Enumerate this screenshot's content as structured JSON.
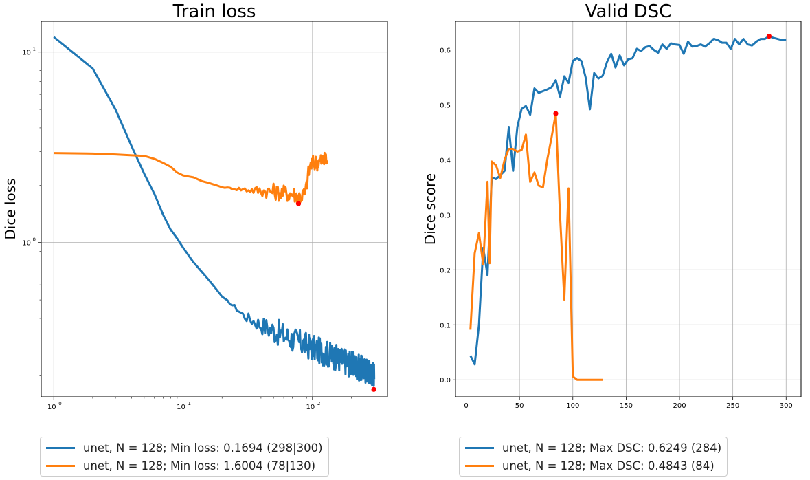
{
  "colors": {
    "series1": "#1f77b4",
    "series2": "#ff7f0e",
    "marker": "#ff0000",
    "grid": "#b0b0b0"
  },
  "chart_data": [
    {
      "type": "line",
      "title": "Train loss",
      "ylabel": "Dice loss",
      "xlabel": "",
      "xscale": "log",
      "yscale": "log",
      "xlim": [
        0.8,
        380
      ],
      "ylim": [
        0.155,
        14.5
      ],
      "xticks": [
        {
          "v": 1,
          "label": "10",
          "exp": "0"
        },
        {
          "v": 10,
          "label": "10",
          "exp": "1"
        },
        {
          "v": 100,
          "label": "10",
          "exp": "2"
        }
      ],
      "yticks": [
        {
          "v": 1,
          "label": "10",
          "exp": "0"
        },
        {
          "v": 10,
          "label": "10",
          "exp": "1"
        }
      ],
      "grid": true,
      "legend_position": "below",
      "series": [
        {
          "name": "unet, N = 128; Min loss: 0.1694 (298|300)",
          "x_end": 300,
          "anchors": [
            [
              1,
              12.0
            ],
            [
              2,
              8.2
            ],
            [
              3,
              5.0
            ],
            [
              4,
              3.2
            ],
            [
              5,
              2.3
            ],
            [
              6,
              1.8
            ],
            [
              7,
              1.4
            ],
            [
              8,
              1.17
            ],
            [
              9,
              1.05
            ],
            [
              10,
              0.94
            ],
            [
              12,
              0.79
            ],
            [
              14,
              0.7
            ],
            [
              16,
              0.63
            ],
            [
              18,
              0.57
            ],
            [
              20,
              0.52
            ],
            [
              25,
              0.46
            ],
            [
              30,
              0.41
            ],
            [
              40,
              0.37
            ],
            [
              50,
              0.345
            ],
            [
              70,
              0.31
            ],
            [
              100,
              0.28
            ],
            [
              150,
              0.25
            ],
            [
              200,
              0.23
            ],
            [
              250,
              0.215
            ],
            [
              300,
              0.205
            ]
          ],
          "noise": 0.07,
          "min_point": [
            298,
            0.1694
          ]
        },
        {
          "name": "unet, N = 128; Min loss: 1.6004 (78|130)",
          "x_end": 130,
          "anchors": [
            [
              1,
              2.95
            ],
            [
              2,
              2.93
            ],
            [
              3,
              2.9
            ],
            [
              4,
              2.87
            ],
            [
              5,
              2.85
            ],
            [
              6,
              2.75
            ],
            [
              7,
              2.62
            ],
            [
              8,
              2.5
            ],
            [
              9,
              2.33
            ],
            [
              10,
              2.25
            ],
            [
              12,
              2.2
            ],
            [
              14,
              2.1
            ],
            [
              16,
              2.05
            ],
            [
              18,
              2.0
            ],
            [
              20,
              1.95
            ],
            [
              25,
              1.92
            ],
            [
              30,
              1.9
            ],
            [
              40,
              1.87
            ],
            [
              50,
              1.85
            ],
            [
              60,
              1.82
            ],
            [
              70,
              1.8
            ],
            [
              80,
              1.75
            ],
            [
              88,
              1.8
            ],
            [
              92,
              2.2
            ],
            [
              96,
              2.55
            ],
            [
              100,
              2.6
            ],
            [
              110,
              2.65
            ],
            [
              120,
              2.7
            ],
            [
              130,
              2.7
            ]
          ],
          "noise": 0.045,
          "min_point": [
            78,
            1.6004
          ]
        }
      ]
    },
    {
      "type": "line",
      "title": "Valid DSC",
      "ylabel": "Dice score",
      "xlabel": "",
      "xlim": [
        -10,
        314
      ],
      "ylim": [
        -0.031,
        0.652
      ],
      "xticks": [
        0,
        50,
        100,
        150,
        200,
        250,
        300
      ],
      "yticks": [
        0.0,
        0.1,
        0.2,
        0.3,
        0.4,
        0.5,
        0.6
      ],
      "grid": true,
      "legend_position": "below",
      "series": [
        {
          "name": "unet, N = 128; Max DSC: 0.6249 (284)",
          "x": [
            4,
            8,
            12,
            16,
            20,
            24,
            28,
            32,
            36,
            40,
            44,
            48,
            52,
            56,
            60,
            64,
            68,
            72,
            76,
            80,
            84,
            88,
            92,
            96,
            100,
            104,
            108,
            112,
            116,
            120,
            124,
            128,
            132,
            136,
            140,
            144,
            148,
            152,
            156,
            160,
            164,
            168,
            172,
            176,
            180,
            184,
            188,
            192,
            196,
            200,
            204,
            208,
            212,
            216,
            220,
            224,
            228,
            232,
            236,
            240,
            244,
            248,
            252,
            256,
            260,
            264,
            268,
            272,
            276,
            280,
            284,
            288,
            292,
            296,
            300
          ],
          "y": [
            0.044,
            0.028,
            0.1,
            0.24,
            0.19,
            0.368,
            0.365,
            0.372,
            0.38,
            0.46,
            0.38,
            0.46,
            0.493,
            0.498,
            0.482,
            0.53,
            0.522,
            0.525,
            0.528,
            0.532,
            0.545,
            0.515,
            0.552,
            0.54,
            0.58,
            0.585,
            0.58,
            0.55,
            0.492,
            0.558,
            0.548,
            0.553,
            0.578,
            0.593,
            0.568,
            0.59,
            0.572,
            0.583,
            0.585,
            0.602,
            0.598,
            0.605,
            0.607,
            0.6,
            0.595,
            0.61,
            0.602,
            0.612,
            0.61,
            0.609,
            0.593,
            0.615,
            0.606,
            0.607,
            0.61,
            0.606,
            0.612,
            0.62,
            0.618,
            0.613,
            0.613,
            0.602,
            0.62,
            0.61,
            0.62,
            0.61,
            0.608,
            0.615,
            0.62,
            0.62,
            0.6249,
            0.622,
            0.62,
            0.618,
            0.618
          ],
          "max_point": [
            284,
            0.6249
          ]
        },
        {
          "name": "unet, N = 128; Max DSC: 0.4843 (84)",
          "x": [
            4,
            8,
            12,
            16,
            20,
            22,
            24,
            28,
            32,
            36,
            40,
            44,
            48,
            52,
            56,
            60,
            64,
            68,
            72,
            76,
            80,
            84,
            88,
            92,
            96,
            100,
            104,
            108,
            112,
            116,
            120,
            124,
            128
          ],
          "y": [
            0.091,
            0.23,
            0.267,
            0.21,
            0.36,
            0.212,
            0.397,
            0.39,
            0.367,
            0.4,
            0.42,
            0.42,
            0.415,
            0.418,
            0.446,
            0.36,
            0.377,
            0.353,
            0.35,
            0.4,
            0.44,
            0.4843,
            0.3,
            0.146,
            0.348,
            0.006,
            0.0,
            0.0,
            0.0,
            0.0,
            0.0,
            0.0,
            0.0
          ],
          "max_point": [
            84,
            0.4843
          ]
        }
      ]
    }
  ]
}
